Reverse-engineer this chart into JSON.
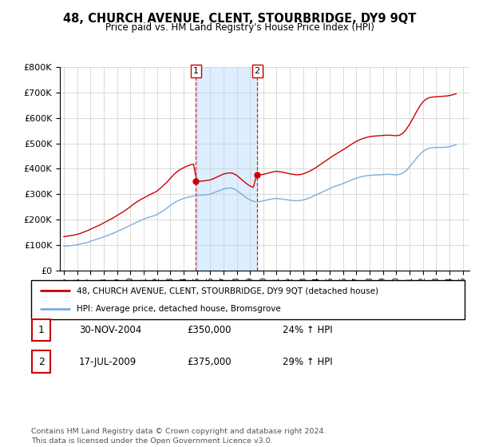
{
  "title": "48, CHURCH AVENUE, CLENT, STOURBRIDGE, DY9 9QT",
  "subtitle": "Price paid vs. HM Land Registry's House Price Index (HPI)",
  "ylim": [
    0,
    800000
  ],
  "xlim_start": 1994.7,
  "xlim_end": 2025.5,
  "x_ticks": [
    1995,
    1996,
    1997,
    1998,
    1999,
    2000,
    2001,
    2002,
    2003,
    2004,
    2005,
    2006,
    2007,
    2008,
    2009,
    2010,
    2011,
    2012,
    2013,
    2014,
    2015,
    2016,
    2017,
    2018,
    2019,
    2020,
    2021,
    2022,
    2023,
    2024,
    2025
  ],
  "t1_x": 2004.92,
  "t1_y": 350000,
  "t2_x": 2009.54,
  "t2_y": 375000,
  "red_color": "#cc0000",
  "blue_color": "#7aaddc",
  "shade_color": "#dceeff",
  "legend_red": "48, CHURCH AVENUE, CLENT, STOURBRIDGE, DY9 9QT (detached house)",
  "legend_blue": "HPI: Average price, detached house, Bromsgrove",
  "table_rows": [
    {
      "num": "1",
      "date": "30-NOV-2004",
      "price": "£350,000",
      "pct": "24% ↑ HPI"
    },
    {
      "num": "2",
      "date": "17-JUL-2009",
      "price": "£375,000",
      "pct": "29% ↑ HPI"
    }
  ],
  "footer": "Contains HM Land Registry data © Crown copyright and database right 2024.\nThis data is licensed under the Open Government Licence v3.0.",
  "hpi_years": [
    1995.0,
    1995.25,
    1995.5,
    1995.75,
    1996.0,
    1996.25,
    1996.5,
    1996.75,
    1997.0,
    1997.25,
    1997.5,
    1997.75,
    1998.0,
    1998.25,
    1998.5,
    1998.75,
    1999.0,
    1999.25,
    1999.5,
    1999.75,
    2000.0,
    2000.25,
    2000.5,
    2000.75,
    2001.0,
    2001.25,
    2001.5,
    2001.75,
    2002.0,
    2002.25,
    2002.5,
    2002.75,
    2003.0,
    2003.25,
    2003.5,
    2003.75,
    2004.0,
    2004.25,
    2004.5,
    2004.75,
    2005.0,
    2005.25,
    2005.5,
    2005.75,
    2006.0,
    2006.25,
    2006.5,
    2006.75,
    2007.0,
    2007.25,
    2007.5,
    2007.75,
    2008.0,
    2008.25,
    2008.5,
    2008.75,
    2009.0,
    2009.25,
    2009.5,
    2009.75,
    2010.0,
    2010.25,
    2010.5,
    2010.75,
    2011.0,
    2011.25,
    2011.5,
    2011.75,
    2012.0,
    2012.25,
    2012.5,
    2012.75,
    2013.0,
    2013.25,
    2013.5,
    2013.75,
    2014.0,
    2014.25,
    2014.5,
    2014.75,
    2015.0,
    2015.25,
    2015.5,
    2015.75,
    2016.0,
    2016.25,
    2016.5,
    2016.75,
    2017.0,
    2017.25,
    2017.5,
    2017.75,
    2018.0,
    2018.25,
    2018.5,
    2018.75,
    2019.0,
    2019.25,
    2019.5,
    2019.75,
    2020.0,
    2020.25,
    2020.5,
    2020.75,
    2021.0,
    2021.25,
    2021.5,
    2021.75,
    2022.0,
    2022.25,
    2022.5,
    2022.75,
    2023.0,
    2023.25,
    2023.5,
    2023.75,
    2024.0,
    2024.25,
    2024.5
  ],
  "hpi_vals": [
    95000,
    96000,
    97500,
    99000,
    101000,
    104000,
    107000,
    110000,
    115000,
    119000,
    123000,
    127000,
    132000,
    137000,
    142000,
    147000,
    153000,
    159000,
    165000,
    171000,
    178000,
    184000,
    190000,
    196000,
    202000,
    207000,
    211000,
    215000,
    220000,
    228000,
    236000,
    245000,
    255000,
    264000,
    272000,
    278000,
    283000,
    287000,
    290000,
    293000,
    295000,
    296000,
    297000,
    298000,
    300000,
    305000,
    310000,
    315000,
    320000,
    323000,
    325000,
    322000,
    315000,
    305000,
    295000,
    285000,
    277000,
    272000,
    270000,
    271000,
    274000,
    277000,
    280000,
    282000,
    283000,
    282000,
    280000,
    278000,
    276000,
    275000,
    274000,
    275000,
    277000,
    281000,
    286000,
    292000,
    298000,
    304000,
    310000,
    316000,
    322000,
    328000,
    333000,
    337000,
    342000,
    347000,
    353000,
    358000,
    363000,
    367000,
    370000,
    372000,
    374000,
    375000,
    376000,
    376000,
    377000,
    378000,
    378000,
    377000,
    376000,
    378000,
    383000,
    393000,
    408000,
    424000,
    440000,
    455000,
    468000,
    476000,
    481000,
    483000,
    484000,
    484000,
    484000,
    485000,
    487000,
    490000,
    495000
  ],
  "red_vals": [
    133000,
    135000,
    137000,
    139000,
    142000,
    146000,
    151000,
    156000,
    162000,
    168000,
    174000,
    180000,
    187000,
    194000,
    201000,
    208000,
    216000,
    224000,
    232000,
    241000,
    251000,
    261000,
    270000,
    278000,
    285000,
    292000,
    299000,
    305000,
    312000,
    323000,
    335000,
    347000,
    362000,
    376000,
    388000,
    397000,
    404000,
    410000,
    415000,
    418000,
    350000,
    351000,
    352000,
    354000,
    356000,
    361000,
    367000,
    373000,
    379000,
    382000,
    384000,
    381000,
    374000,
    363000,
    352000,
    341000,
    332000,
    327000,
    375000,
    376000,
    378000,
    381000,
    385000,
    388000,
    390000,
    388000,
    386000,
    383000,
    380000,
    378000,
    376000,
    377000,
    380000,
    385000,
    391000,
    398000,
    406000,
    415000,
    424000,
    433000,
    442000,
    451000,
    459000,
    467000,
    475000,
    483000,
    492000,
    500000,
    508000,
    514000,
    519000,
    523000,
    526000,
    528000,
    529000,
    530000,
    531000,
    532000,
    532000,
    531000,
    530000,
    532000,
    540000,
    555000,
    575000,
    598000,
    622000,
    645000,
    663000,
    674000,
    680000,
    682000,
    683000,
    684000,
    685000,
    686000,
    688000,
    691000,
    695000
  ]
}
